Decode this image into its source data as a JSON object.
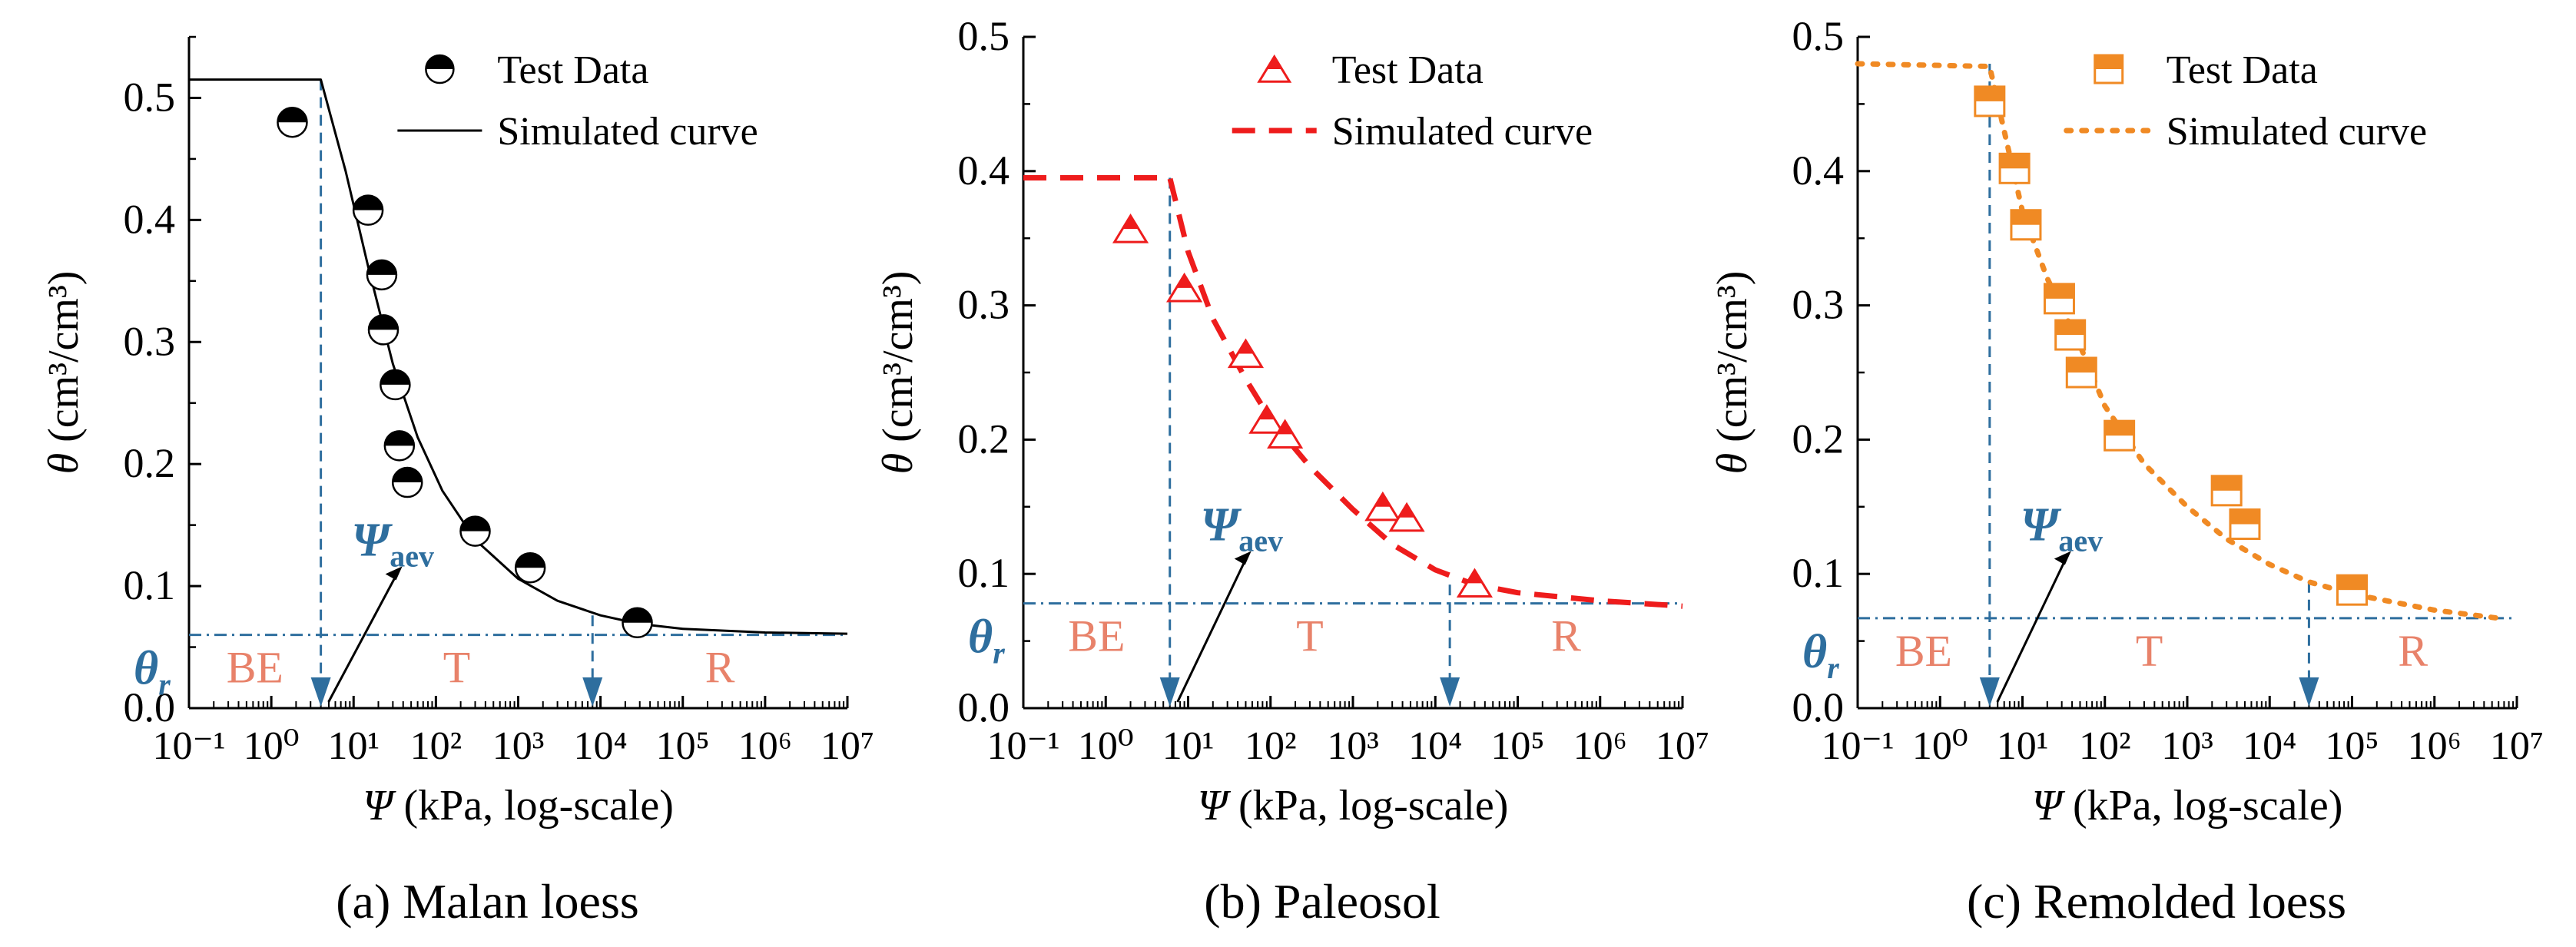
{
  "figure": {
    "panels": [
      {
        "id": "a",
        "caption": "(a) Malan loess",
        "legend": {
          "items": [
            "Test Data",
            "Simulated curve"
          ]
        },
        "xlabel": {
          "symbol": "Ψ",
          "rest": " (kPa, log-scale)"
        },
        "ylabel": {
          "symbol": "θ",
          "rest": " (cm³/cm³)"
        },
        "annotations": {
          "psi_aev": "Ψ",
          "psi_aev_sub": "aev",
          "theta_r": "θ",
          "theta_r_sub": "r",
          "zones": [
            "BE",
            "T",
            "R"
          ]
        }
      },
      {
        "id": "b",
        "caption": "(b) Paleosol",
        "legend": {
          "items": [
            "Test Data",
            "Simulated curve"
          ]
        },
        "xlabel": {
          "symbol": "Ψ",
          "rest": " (kPa, log-scale)"
        },
        "ylabel": {
          "symbol": "θ",
          "rest": " (cm³/cm³)"
        },
        "annotations": {
          "psi_aev": "Ψ",
          "psi_aev_sub": "aev",
          "theta_r": "θ",
          "theta_r_sub": "r",
          "zones": [
            "BE",
            "T",
            "R"
          ]
        }
      },
      {
        "id": "c",
        "caption": "(c) Remolded loess",
        "legend": {
          "items": [
            "Test Data",
            "Simulated curve"
          ]
        },
        "xlabel": {
          "symbol": "Ψ",
          "rest": " (kPa, log-scale)"
        },
        "ylabel": {
          "symbol": "θ",
          "rest": " (cm³/cm³)"
        },
        "annotations": {
          "psi_aev": "Ψ",
          "psi_aev_sub": "aev",
          "theta_r": "θ",
          "theta_r_sub": "r",
          "zones": [
            "BE",
            "T",
            "R"
          ]
        }
      }
    ]
  },
  "colors": {
    "axis": "#000000",
    "guide": "#2e6e9e",
    "zone_label": "#e8826a",
    "panel_a_curve": "#000000",
    "panel_b_curve": "#ee1c1c",
    "panel_c_curve": "#f08a24"
  },
  "chart_data": [
    {
      "type": "scatter",
      "xscale": "log",
      "xlim": [
        0.1,
        10000000
      ],
      "ylim": [
        0,
        0.55
      ],
      "x_ticks": [
        0.1,
        1,
        10,
        100,
        1000,
        10000,
        100000,
        1000000,
        10000000
      ],
      "x_tick_labels": [
        "10⁻¹",
        "10⁰",
        "10¹",
        "10²",
        "10³",
        "10⁴",
        "10⁵",
        "10⁶",
        "10⁷"
      ],
      "y_ticks": [
        0.0,
        0.1,
        0.2,
        0.3,
        0.4,
        0.5
      ],
      "y_tick_labels": [
        "0.0",
        "0.1",
        "0.2",
        "0.3",
        "0.4",
        "0.5"
      ],
      "marker": "half-circle",
      "curve_style": "solid",
      "legend_position": "top-right",
      "series": [
        {
          "name": "Test Data",
          "kind": "points",
          "x": [
            1.8,
            15,
            22,
            23,
            32,
            36,
            45,
            300,
            1400,
            28000
          ],
          "y": [
            0.48,
            0.408,
            0.355,
            0.31,
            0.265,
            0.215,
            0.185,
            0.145,
            0.115,
            0.07
          ]
        },
        {
          "name": "Simulated curve",
          "kind": "line",
          "x": [
            0.1,
            4,
            8,
            15,
            30,
            60,
            120,
            300,
            1000,
            3000,
            10000,
            30000,
            100000,
            1000000,
            10000000
          ],
          "y": [
            0.515,
            0.515,
            0.44,
            0.362,
            0.282,
            0.222,
            0.178,
            0.138,
            0.106,
            0.088,
            0.076,
            0.069,
            0.065,
            0.062,
            0.061
          ]
        }
      ],
      "guides": {
        "psi_aev": 4,
        "theta_r": 0.06,
        "t_r_boundary": 8000
      }
    },
    {
      "type": "scatter",
      "xscale": "log",
      "xlim": [
        0.1,
        10000000
      ],
      "ylim": [
        0,
        0.5
      ],
      "x_ticks": [
        0.1,
        1,
        10,
        100,
        1000,
        10000,
        100000,
        1000000,
        10000000
      ],
      "x_tick_labels": [
        "10⁻¹",
        "10⁰",
        "10¹",
        "10²",
        "10³",
        "10⁴",
        "10⁵",
        "10⁶",
        "10⁷"
      ],
      "y_ticks": [
        0.0,
        0.1,
        0.2,
        0.3,
        0.4,
        0.5
      ],
      "y_tick_labels": [
        "0.0",
        "0.1",
        "0.2",
        "0.3",
        "0.4",
        "0.5"
      ],
      "marker": "half-triangle",
      "curve_style": "dashed",
      "legend_position": "top-right",
      "series": [
        {
          "name": "Test Data",
          "kind": "points",
          "x": [
            2,
            9,
            50,
            90,
            150,
            2300,
            4500,
            30000
          ],
          "y": [
            0.357,
            0.313,
            0.264,
            0.215,
            0.204,
            0.15,
            0.142,
            0.093
          ]
        },
        {
          "name": "Simulated curve",
          "kind": "line",
          "x": [
            0.1,
            6,
            10,
            20,
            50,
            100,
            300,
            1000,
            3000,
            10000,
            30000,
            100000,
            1000000,
            10000000
          ],
          "y": [
            0.395,
            0.395,
            0.34,
            0.29,
            0.245,
            0.215,
            0.18,
            0.148,
            0.122,
            0.103,
            0.092,
            0.086,
            0.08,
            0.076
          ]
        }
      ],
      "guides": {
        "psi_aev": 6,
        "theta_r": 0.078,
        "t_r_boundary": 15000
      }
    },
    {
      "type": "scatter",
      "xscale": "log",
      "xlim": [
        0.1,
        10000000
      ],
      "ylim": [
        0,
        0.5
      ],
      "x_ticks": [
        0.1,
        1,
        10,
        100,
        1000,
        10000,
        100000,
        1000000,
        10000000
      ],
      "x_tick_labels": [
        "10⁻¹",
        "10⁰",
        "10¹",
        "10²",
        "10³",
        "10⁴",
        "10⁵",
        "10⁶",
        "10⁷"
      ],
      "y_ticks": [
        0.0,
        0.1,
        0.2,
        0.3,
        0.4,
        0.5
      ],
      "y_tick_labels": [
        "0.0",
        "0.1",
        "0.2",
        "0.3",
        "0.4",
        "0.5"
      ],
      "marker": "half-square",
      "curve_style": "dotted",
      "legend_position": "top-right",
      "series": [
        {
          "name": "Test Data",
          "kind": "points",
          "x": [
            4,
            8,
            11,
            28,
            38,
            52,
            150,
            3000,
            5000,
            100000
          ],
          "y": [
            0.452,
            0.402,
            0.36,
            0.305,
            0.278,
            0.25,
            0.203,
            0.162,
            0.137,
            0.088
          ]
        },
        {
          "name": "Simulated curve",
          "kind": "line",
          "x": [
            0.1,
            4,
            6,
            10,
            20,
            50,
            100,
            300,
            1000,
            3000,
            10000,
            30000,
            100000,
            1000000,
            6000000
          ],
          "y": [
            0.48,
            0.478,
            0.43,
            0.37,
            0.32,
            0.27,
            0.225,
            0.182,
            0.15,
            0.126,
            0.107,
            0.094,
            0.085,
            0.073,
            0.067
          ]
        }
      ],
      "guides": {
        "psi_aev": 4,
        "theta_r": 0.067,
        "t_r_boundary": 30000
      }
    }
  ]
}
